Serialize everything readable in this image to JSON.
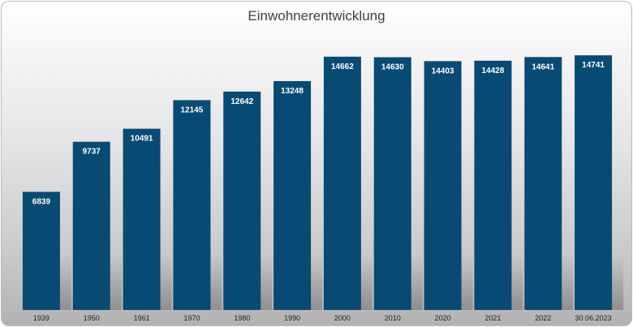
{
  "chart_data": {
    "type": "bar",
    "title": "Einwohnerentwicklung",
    "categories": [
      "1939",
      "1950",
      "1961",
      "1970",
      "1980",
      "1990",
      "2000",
      "2010",
      "2020",
      "2021",
      "2022",
      "30.06.2023"
    ],
    "series": [
      {
        "values": [
          6839,
          9737,
          10491,
          12145,
          12642,
          13248,
          14662,
          14630,
          14403,
          14428,
          14641,
          14741
        ]
      }
    ],
    "ylim": [
      0,
      15500
    ],
    "grid": false,
    "legend": "none",
    "data_labels": true
  },
  "colors": {
    "bar": "#074b74",
    "label_text": "#ffffff",
    "axis_text": "#222222",
    "title_text": "#404040"
  }
}
